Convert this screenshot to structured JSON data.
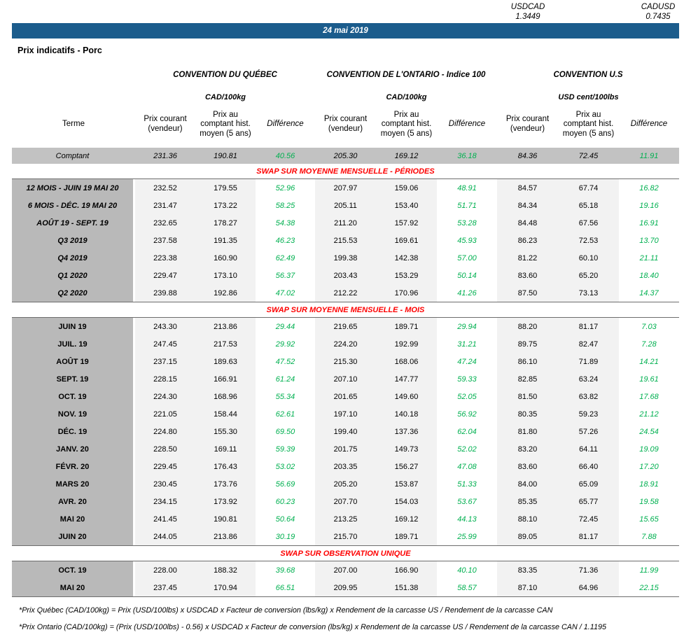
{
  "fx": {
    "usdcad_label": "USDCAD",
    "usdcad_value": "1.3449",
    "cadusd_label": "CADUSD",
    "cadusd_value": "0.7435"
  },
  "header": {
    "date": "24 mai 2019",
    "page_title": "Prix indicatifs - Porc"
  },
  "table": {
    "terme_header": "Terme",
    "groups": [
      {
        "title": "CONVENTION DU QUÉBEC",
        "unit": "CAD/100kg"
      },
      {
        "title": "CONVENTION DE L'ONTARIO - Indice 100",
        "unit": "CAD/100kg"
      },
      {
        "title": "CONVENTION U.S",
        "unit": "USD cent/100lbs"
      }
    ],
    "col_headers": [
      "Prix courant (vendeur)",
      "Prix au comptant hist. moyen (5 ans)",
      "Différence"
    ],
    "comptant": {
      "term": "Comptant",
      "values": [
        "231.36",
        "190.81",
        "40.56",
        "205.30",
        "169.12",
        "36.18",
        "84.36",
        "72.45",
        "11.91"
      ]
    },
    "sections": [
      {
        "id": "periodes",
        "title": "SWAP SUR MOYENNE MENSUELLE - PÉRIODES",
        "rows": [
          {
            "term": "12 MOIS -  JUIN 19 MAI 20",
            "values": [
              "232.52",
              "179.55",
              "52.96",
              "207.97",
              "159.06",
              "48.91",
              "84.57",
              "67.74",
              "16.82"
            ]
          },
          {
            "term": "6 MOIS -  DÉC. 19 MAI 20",
            "values": [
              "231.47",
              "173.22",
              "58.25",
              "205.11",
              "153.40",
              "51.71",
              "84.34",
              "65.18",
              "19.16"
            ]
          },
          {
            "term": "AOÛT 19 -  SEPT. 19",
            "values": [
              "232.65",
              "178.27",
              "54.38",
              "211.20",
              "157.92",
              "53.28",
              "84.48",
              "67.56",
              "16.91"
            ]
          },
          {
            "term": "Q3 2019",
            "values": [
              "237.58",
              "191.35",
              "46.23",
              "215.53",
              "169.61",
              "45.93",
              "86.23",
              "72.53",
              "13.70"
            ]
          },
          {
            "term": "Q4 2019",
            "values": [
              "223.38",
              "160.90",
              "62.49",
              "199.38",
              "142.38",
              "57.00",
              "81.22",
              "60.10",
              "21.11"
            ]
          },
          {
            "term": "Q1 2020",
            "values": [
              "229.47",
              "173.10",
              "56.37",
              "203.43",
              "153.29",
              "50.14",
              "83.60",
              "65.20",
              "18.40"
            ]
          },
          {
            "term": "Q2 2020",
            "values": [
              "239.88",
              "192.86",
              "47.02",
              "212.22",
              "170.96",
              "41.26",
              "87.50",
              "73.13",
              "14.37"
            ]
          }
        ]
      },
      {
        "id": "mois",
        "title": "SWAP SUR MOYENNE MENSUELLE - MOIS",
        "rows": [
          {
            "term": "JUIN 19",
            "values": [
              "243.30",
              "213.86",
              "29.44",
              "219.65",
              "189.71",
              "29.94",
              "88.20",
              "81.17",
              "7.03"
            ]
          },
          {
            "term": "JUIL. 19",
            "values": [
              "247.45",
              "217.53",
              "29.92",
              "224.20",
              "192.99",
              "31.21",
              "89.75",
              "82.47",
              "7.28"
            ]
          },
          {
            "term": "AOÛT 19",
            "values": [
              "237.15",
              "189.63",
              "47.52",
              "215.30",
              "168.06",
              "47.24",
              "86.10",
              "71.89",
              "14.21"
            ]
          },
          {
            "term": "SEPT. 19",
            "values": [
              "228.15",
              "166.91",
              "61.24",
              "207.10",
              "147.77",
              "59.33",
              "82.85",
              "63.24",
              "19.61"
            ]
          },
          {
            "term": "OCT. 19",
            "values": [
              "224.30",
              "168.96",
              "55.34",
              "201.65",
              "149.60",
              "52.05",
              "81.50",
              "63.82",
              "17.68"
            ]
          },
          {
            "term": "NOV. 19",
            "values": [
              "221.05",
              "158.44",
              "62.61",
              "197.10",
              "140.18",
              "56.92",
              "80.35",
              "59.23",
              "21.12"
            ]
          },
          {
            "term": "DÉC. 19",
            "values": [
              "224.80",
              "155.30",
              "69.50",
              "199.40",
              "137.36",
              "62.04",
              "81.80",
              "57.26",
              "24.54"
            ]
          },
          {
            "term": "JANV. 20",
            "values": [
              "228.50",
              "169.11",
              "59.39",
              "201.75",
              "149.73",
              "52.02",
              "83.20",
              "64.11",
              "19.09"
            ]
          },
          {
            "term": "FÉVR. 20",
            "values": [
              "229.45",
              "176.43",
              "53.02",
              "203.35",
              "156.27",
              "47.08",
              "83.60",
              "66.40",
              "17.20"
            ]
          },
          {
            "term": "MARS 20",
            "values": [
              "230.45",
              "173.76",
              "56.69",
              "205.20",
              "153.87",
              "51.33",
              "84.00",
              "65.09",
              "18.91"
            ]
          },
          {
            "term": "AVR. 20",
            "values": [
              "234.15",
              "173.92",
              "60.23",
              "207.70",
              "154.03",
              "53.67",
              "85.35",
              "65.77",
              "19.58"
            ]
          },
          {
            "term": "MAI 20",
            "values": [
              "241.45",
              "190.81",
              "50.64",
              "213.25",
              "169.12",
              "44.13",
              "88.10",
              "72.45",
              "15.65"
            ]
          },
          {
            "term": "JUIN 20",
            "values": [
              "244.05",
              "213.86",
              "30.19",
              "215.70",
              "189.71",
              "25.99",
              "89.05",
              "81.17",
              "7.88"
            ]
          }
        ]
      },
      {
        "id": "unique",
        "title": "SWAP SUR OBSERVATION UNIQUE",
        "rows": [
          {
            "term": "OCT. 19",
            "values": [
              "228.00",
              "188.32",
              "39.68",
              "207.00",
              "166.90",
              "40.10",
              "83.35",
              "71.36",
              "11.99"
            ]
          },
          {
            "term": "MAI 20",
            "values": [
              "237.45",
              "170.94",
              "66.51",
              "209.95",
              "151.38",
              "58.57",
              "87.10",
              "64.96",
              "22.15"
            ]
          }
        ]
      }
    ],
    "footnotes": [
      "*Prix Québec (CAD/100kg) = Prix (USD/100lbs) x USDCAD x Facteur de conversion (lbs/kg) x Rendement de la carcasse US / Rendement de la carcasse CAN",
      "*Prix Ontario (CAD/100kg) = (Prix (USD/100lbs) - 0.56) x USDCAD x Facteur de conversion (lbs/kg) x Rendement de la carcasse US / Rendement de la carcasse CAN / 1.1195"
    ]
  },
  "colors": {
    "banner_blue": "#1b5c8c",
    "term_gray": "#b9b9b9",
    "comptant_gray": "#c2c2c2",
    "band_light_gray": "#f2f2f2",
    "diff_green": "#00b050",
    "section_red": "#fe0000"
  }
}
